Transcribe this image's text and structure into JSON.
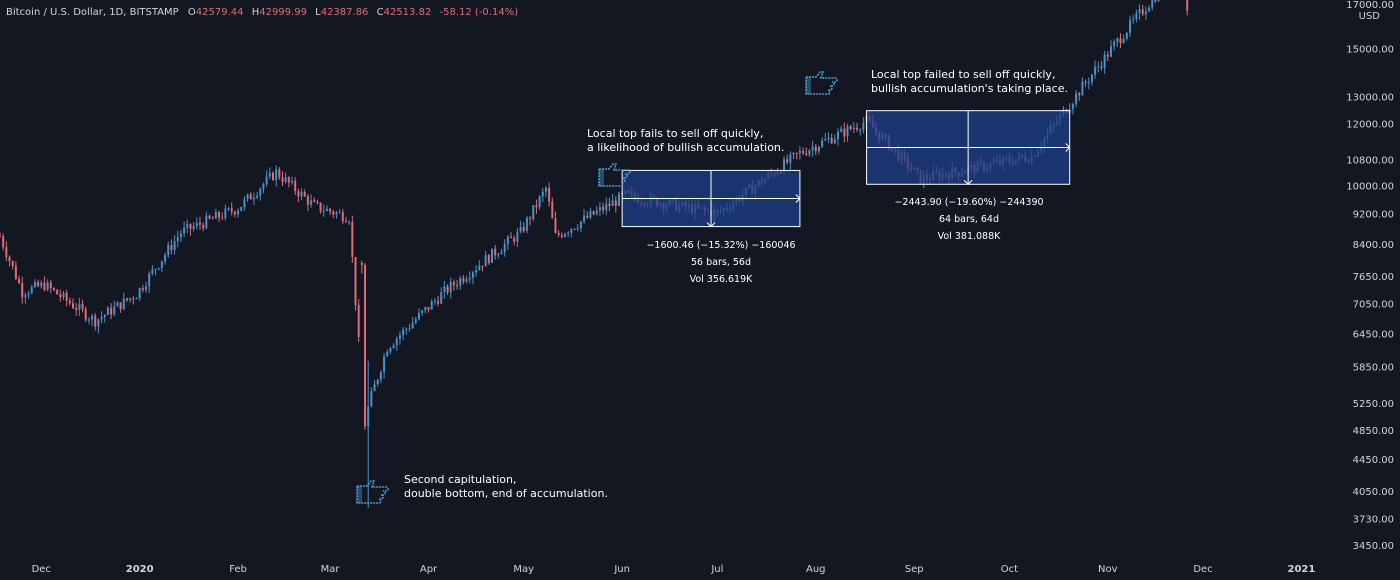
{
  "header": {
    "symbol": "Bitcoin / U.S. Dollar, 1D, BITSTAMP",
    "open_label": "O",
    "open": "42579.44",
    "high_label": "H",
    "high": "42999.99",
    "low_label": "L",
    "low": "42387.86",
    "close_label": "C",
    "close": "42513.82",
    "change": "-58.12 (-0.14%)"
  },
  "price_axis": {
    "unit": "USD",
    "top_label": "17000.00",
    "ticks": [
      {
        "value": 15000,
        "label": "15000.00"
      },
      {
        "value": 13000,
        "label": "13000.00"
      },
      {
        "value": 12000,
        "label": "12000.00"
      },
      {
        "value": 10800,
        "label": "10800.00"
      },
      {
        "value": 10000,
        "label": "10000.00"
      },
      {
        "value": 9200,
        "label": "9200.00"
      },
      {
        "value": 8400,
        "label": "8400.00"
      },
      {
        "value": 7650,
        "label": "7650.00"
      },
      {
        "value": 7050,
        "label": "7050.00"
      },
      {
        "value": 6450,
        "label": "6450.00"
      },
      {
        "value": 5850,
        "label": "5850.00"
      },
      {
        "value": 5250,
        "label": "5250.00"
      },
      {
        "value": 4850,
        "label": "4850.00"
      },
      {
        "value": 4450,
        "label": "4450.00"
      },
      {
        "value": 4050,
        "label": "4050.00"
      },
      {
        "value": 3730,
        "label": "3730.00"
      },
      {
        "value": 3450,
        "label": "3450.00"
      }
    ]
  },
  "time_axis": {
    "ticks": [
      {
        "date": "2019-12-01",
        "label": "Dec"
      },
      {
        "date": "2020-01-01",
        "label": "2020"
      },
      {
        "date": "2020-02-01",
        "label": "Feb"
      },
      {
        "date": "2020-03-01",
        "label": "Mar"
      },
      {
        "date": "2020-04-01",
        "label": "Apr"
      },
      {
        "date": "2020-05-01",
        "label": "May"
      },
      {
        "date": "2020-06-01",
        "label": "Jun"
      },
      {
        "date": "2020-07-01",
        "label": "Jul"
      },
      {
        "date": "2020-08-01",
        "label": "Aug"
      },
      {
        "date": "2020-09-01",
        "label": "Sep"
      },
      {
        "date": "2020-10-01",
        "label": "Oct"
      },
      {
        "date": "2020-11-01",
        "label": "Nov"
      },
      {
        "date": "2020-12-01",
        "label": "Dec"
      },
      {
        "date": "2021-01-01",
        "label": "2021"
      }
    ]
  },
  "annotations": {
    "capitulation": [
      "Second capitulation,",
      "double bottom, end of accumulation."
    ],
    "local_top_1": [
      "Local top fails to sell off quickly,",
      "a likelihood of bullish accumulation."
    ],
    "local_top_2": [
      "Local top failed to sell off quickly,",
      "bullish accumulation's taking place."
    ]
  },
  "measurements": [
    {
      "id": "range1",
      "start": "2020-06-01",
      "end": "2020-07-27",
      "high": 10450,
      "low": 8850,
      "line1": "−1600.46 (−15.32%) −160046",
      "line2": "56 bars, 56d",
      "line3": "Vol 356.619K"
    },
    {
      "id": "range2",
      "start": "2020-08-17",
      "end": "2020-10-20",
      "high": 12470,
      "low": 10030,
      "line1": "−2443.90 (−19.60%) −244390",
      "line2": "64 bars, 64d",
      "line3": "Vol 381.088K"
    }
  ],
  "colors": {
    "background": "#131722",
    "up": "#4a90c9",
    "down": "#e06c75",
    "measure_fill": "#1e3f8a",
    "header_positive": "#e06c75",
    "icon": "#4a9fd5"
  },
  "chart_data": {
    "type": "candlestick",
    "title": "Bitcoin / U.S. Dollar, 1D, BITSTAMP",
    "xlabel": "",
    "ylabel": "USD",
    "scale": "log",
    "x_range": [
      "2019-11-18",
      "2021-01-10"
    ],
    "y_range": [
      3300,
      17200
    ],
    "grid": false,
    "series": [
      {
        "date": "2019-11-18",
        "close": 8600
      },
      {
        "date": "2019-11-25",
        "close": 7300
      },
      {
        "date": "2019-12-02",
        "close": 7450
      },
      {
        "date": "2019-12-18",
        "close": 6700
      },
      {
        "date": "2019-12-31",
        "close": 7250
      },
      {
        "date": "2020-01-14",
        "close": 8700
      },
      {
        "date": "2020-02-01",
        "close": 9350
      },
      {
        "date": "2020-02-13",
        "close": 10400
      },
      {
        "date": "2020-02-25",
        "close": 9400
      },
      {
        "date": "2020-03-07",
        "close": 9100
      },
      {
        "date": "2020-03-12",
        "close": 4900
      },
      {
        "date": "2020-03-13",
        "close": 5200
      },
      {
        "date": "2020-03-19",
        "close": 6200
      },
      {
        "date": "2020-04-06",
        "close": 7300
      },
      {
        "date": "2020-04-30",
        "close": 8700
      },
      {
        "date": "2020-05-08",
        "close": 9900
      },
      {
        "date": "2020-05-11",
        "close": 8600
      },
      {
        "date": "2020-06-02",
        "close": 9700
      },
      {
        "date": "2020-07-01",
        "close": 9200
      },
      {
        "date": "2020-07-27",
        "close": 11000
      },
      {
        "date": "2020-08-17",
        "close": 12100
      },
      {
        "date": "2020-09-03",
        "close": 10200
      },
      {
        "date": "2020-10-08",
        "close": 10900
      },
      {
        "date": "2020-10-21",
        "close": 12900
      },
      {
        "date": "2020-11-05",
        "close": 15500
      },
      {
        "date": "2020-11-24",
        "close": 19200
      },
      {
        "date": "2020-11-26",
        "close": 17000
      }
    ]
  }
}
